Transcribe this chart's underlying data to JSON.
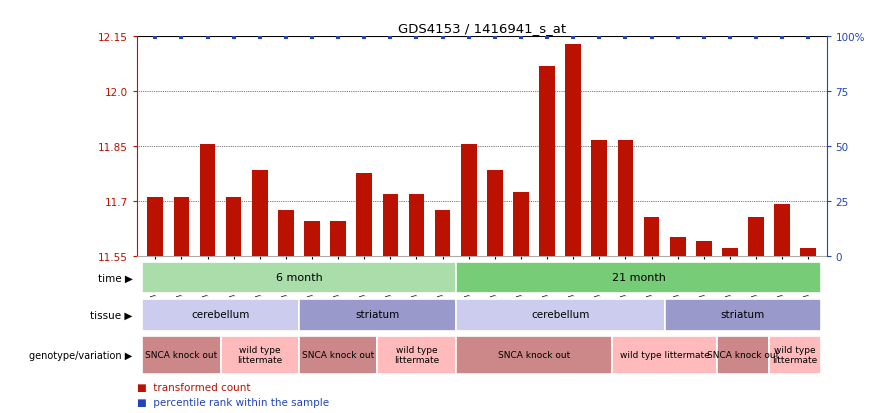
{
  "title": "GDS4153 / 1416941_s_at",
  "samples": [
    "GSM487049",
    "GSM487050",
    "GSM487051",
    "GSM487046",
    "GSM487047",
    "GSM487048",
    "GSM487055",
    "GSM487056",
    "GSM487057",
    "GSM487052",
    "GSM487053",
    "GSM487054",
    "GSM487062",
    "GSM487063",
    "GSM487064",
    "GSM487065",
    "GSM487058",
    "GSM487059",
    "GSM487060",
    "GSM487061",
    "GSM487069",
    "GSM487070",
    "GSM487071",
    "GSM487066",
    "GSM487067",
    "GSM487068"
  ],
  "values": [
    11.71,
    11.71,
    11.855,
    11.71,
    11.785,
    11.675,
    11.645,
    11.645,
    11.775,
    11.72,
    11.72,
    11.675,
    11.855,
    11.785,
    11.725,
    12.07,
    12.13,
    11.865,
    11.865,
    11.655,
    11.6,
    11.59,
    11.57,
    11.655,
    11.69,
    11.57
  ],
  "ymin": 11.55,
  "ymax": 12.15,
  "yticks": [
    11.55,
    11.7,
    11.85,
    12.0,
    12.15
  ],
  "right_ytick_vals": [
    0,
    25,
    50,
    75,
    100
  ],
  "bar_color": "#bb1100",
  "blue_color": "#2244bb",
  "time_groups": [
    {
      "label": "6 month",
      "start": 0,
      "end": 11,
      "color": "#aaddaa"
    },
    {
      "label": "21 month",
      "start": 12,
      "end": 25,
      "color": "#77cc77"
    }
  ],
  "tissue_groups": [
    {
      "label": "cerebellum",
      "start": 0,
      "end": 5,
      "color": "#ccccee"
    },
    {
      "label": "striatum",
      "start": 6,
      "end": 11,
      "color": "#9999cc"
    },
    {
      "label": "cerebellum",
      "start": 12,
      "end": 19,
      "color": "#ccccee"
    },
    {
      "label": "striatum",
      "start": 20,
      "end": 25,
      "color": "#9999cc"
    }
  ],
  "genotype_groups": [
    {
      "label": "SNCA knock out",
      "start": 0,
      "end": 2,
      "color": "#cc8888"
    },
    {
      "label": "wild type\nlittermate",
      "start": 3,
      "end": 5,
      "color": "#ffbbbb"
    },
    {
      "label": "SNCA knock out",
      "start": 6,
      "end": 8,
      "color": "#cc8888"
    },
    {
      "label": "wild type\nlittermate",
      "start": 9,
      "end": 11,
      "color": "#ffbbbb"
    },
    {
      "label": "SNCA knock out",
      "start": 12,
      "end": 17,
      "color": "#cc8888"
    },
    {
      "label": "wild type littermate",
      "start": 18,
      "end": 21,
      "color": "#ffbbbb"
    },
    {
      "label": "SNCA knock out",
      "start": 22,
      "end": 23,
      "color": "#cc8888"
    },
    {
      "label": "wild type\nlittermate",
      "start": 24,
      "end": 25,
      "color": "#ffbbbb"
    }
  ]
}
